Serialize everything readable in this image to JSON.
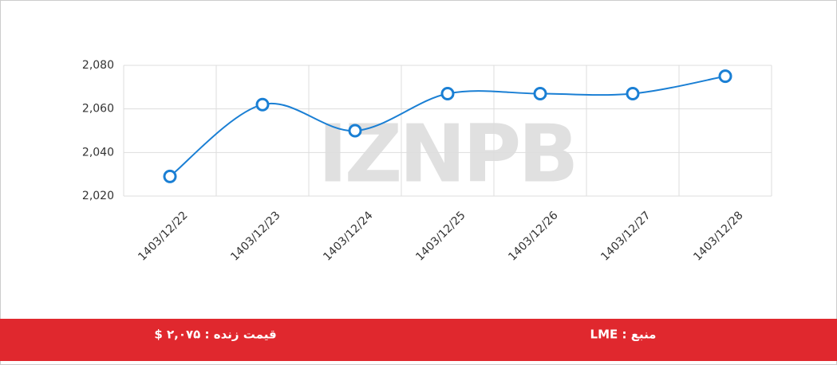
{
  "chart_data": {
    "type": "line",
    "watermark": "IZNPB",
    "categories": [
      "1403/12/22",
      "1403/12/23",
      "1403/12/24",
      "1403/12/25",
      "1403/12/26",
      "1403/12/27",
      "1403/12/28"
    ],
    "series": [
      {
        "color": "#1a7fd4",
        "values": [
          2029,
          2062,
          2050,
          2067,
          2067,
          2067,
          2075
        ]
      }
    ],
    "ylim": [
      2020,
      2080
    ],
    "yticks": [
      {
        "value": 2020,
        "label": "2,020"
      },
      {
        "value": 2040,
        "label": "2,040"
      },
      {
        "value": 2060,
        "label": "2,060"
      },
      {
        "value": 2080,
        "label": "2,080"
      }
    ],
    "grid": true,
    "footer": {
      "price": "قیمت زنده : ۲,۰۷۵ $",
      "source": "منبع : LME"
    }
  }
}
